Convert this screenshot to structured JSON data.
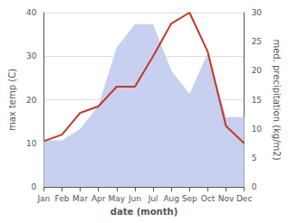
{
  "chart_data": {
    "type": "line",
    "xlabel": "date (month)",
    "ylabel": "max temp (C)",
    "y2label": "med. precipitation (kg/m2)",
    "categories": [
      "Jan",
      "Feb",
      "Mar",
      "Apr",
      "May",
      "Jun",
      "Jul",
      "Aug",
      "Sep",
      "Oct",
      "Nov",
      "Dec"
    ],
    "series": [
      {
        "type": "area",
        "color": "#c8d0f0",
        "axis": "y2",
        "values": [
          8.0,
          8.0,
          10.0,
          14.0,
          24.0,
          28.0,
          28.0,
          20.0,
          16.0,
          23.0,
          12.0,
          12.0
        ]
      },
      {
        "type": "line",
        "color": "#c0392b",
        "values": [
          10.5,
          12.0,
          17.0,
          18.5,
          23.0,
          23.0,
          30.0,
          37.5,
          40.0,
          31.0,
          14.0,
          10.0
        ]
      }
    ],
    "ylim": [
      0,
      40
    ],
    "yticks": [
      0,
      10,
      20,
      30,
      40
    ],
    "y2lim": [
      0,
      30
    ],
    "y2ticks": [
      0,
      5,
      10,
      15,
      20,
      25,
      30
    ],
    "grid": true
  }
}
